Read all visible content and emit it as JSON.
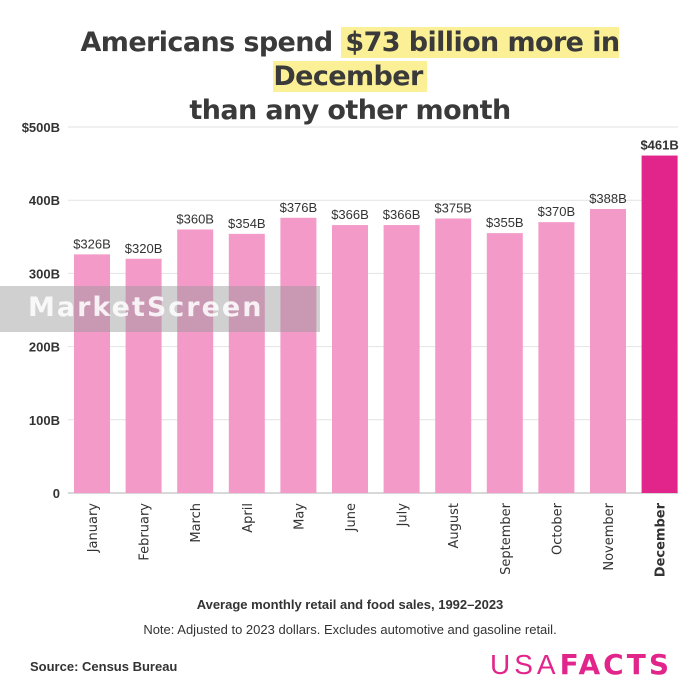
{
  "header": {
    "title_pre": "Americans spend ",
    "title_highlight": "$73 billion more in December",
    "title_line2": "than any other month"
  },
  "chart_data": {
    "type": "bar",
    "title": "Americans spend $73 billion more in December than any other month",
    "xlabel": "Average monthly retail and food sales, 1992–2023",
    "ylabel": "",
    "categories": [
      "January",
      "February",
      "March",
      "April",
      "May",
      "June",
      "July",
      "August",
      "September",
      "October",
      "November",
      "December"
    ],
    "values": [
      326,
      320,
      360,
      354,
      376,
      366,
      366,
      375,
      355,
      370,
      388,
      461
    ],
    "value_labels": [
      "$326B",
      "$320B",
      "$360B",
      "$354B",
      "$376B",
      "$366B",
      "$366B",
      "$375B",
      "$355B",
      "$370B",
      "$388B",
      "$461B"
    ],
    "units": "billions of US dollars",
    "ylim": [
      0,
      500
    ],
    "yticks": [
      0,
      100,
      200,
      300,
      400,
      500
    ],
    "ytick_labels": [
      "0",
      "100B",
      "200B",
      "300B",
      "400B",
      "$500B"
    ],
    "grid": true,
    "highlight_category": "December",
    "colors": {
      "default": "#f39ac8",
      "highlight": "#e2258b"
    }
  },
  "footer": {
    "subtitle": "Average monthly retail and food sales, 1992–2023",
    "note": "Note: Adjusted to 2023 dollars. Excludes automotive and gasoline retail.",
    "source": "Source: Census Bureau",
    "logo_light": "USA",
    "logo_bold": "FACTS"
  },
  "watermark": {
    "text": "MarketScreen"
  }
}
